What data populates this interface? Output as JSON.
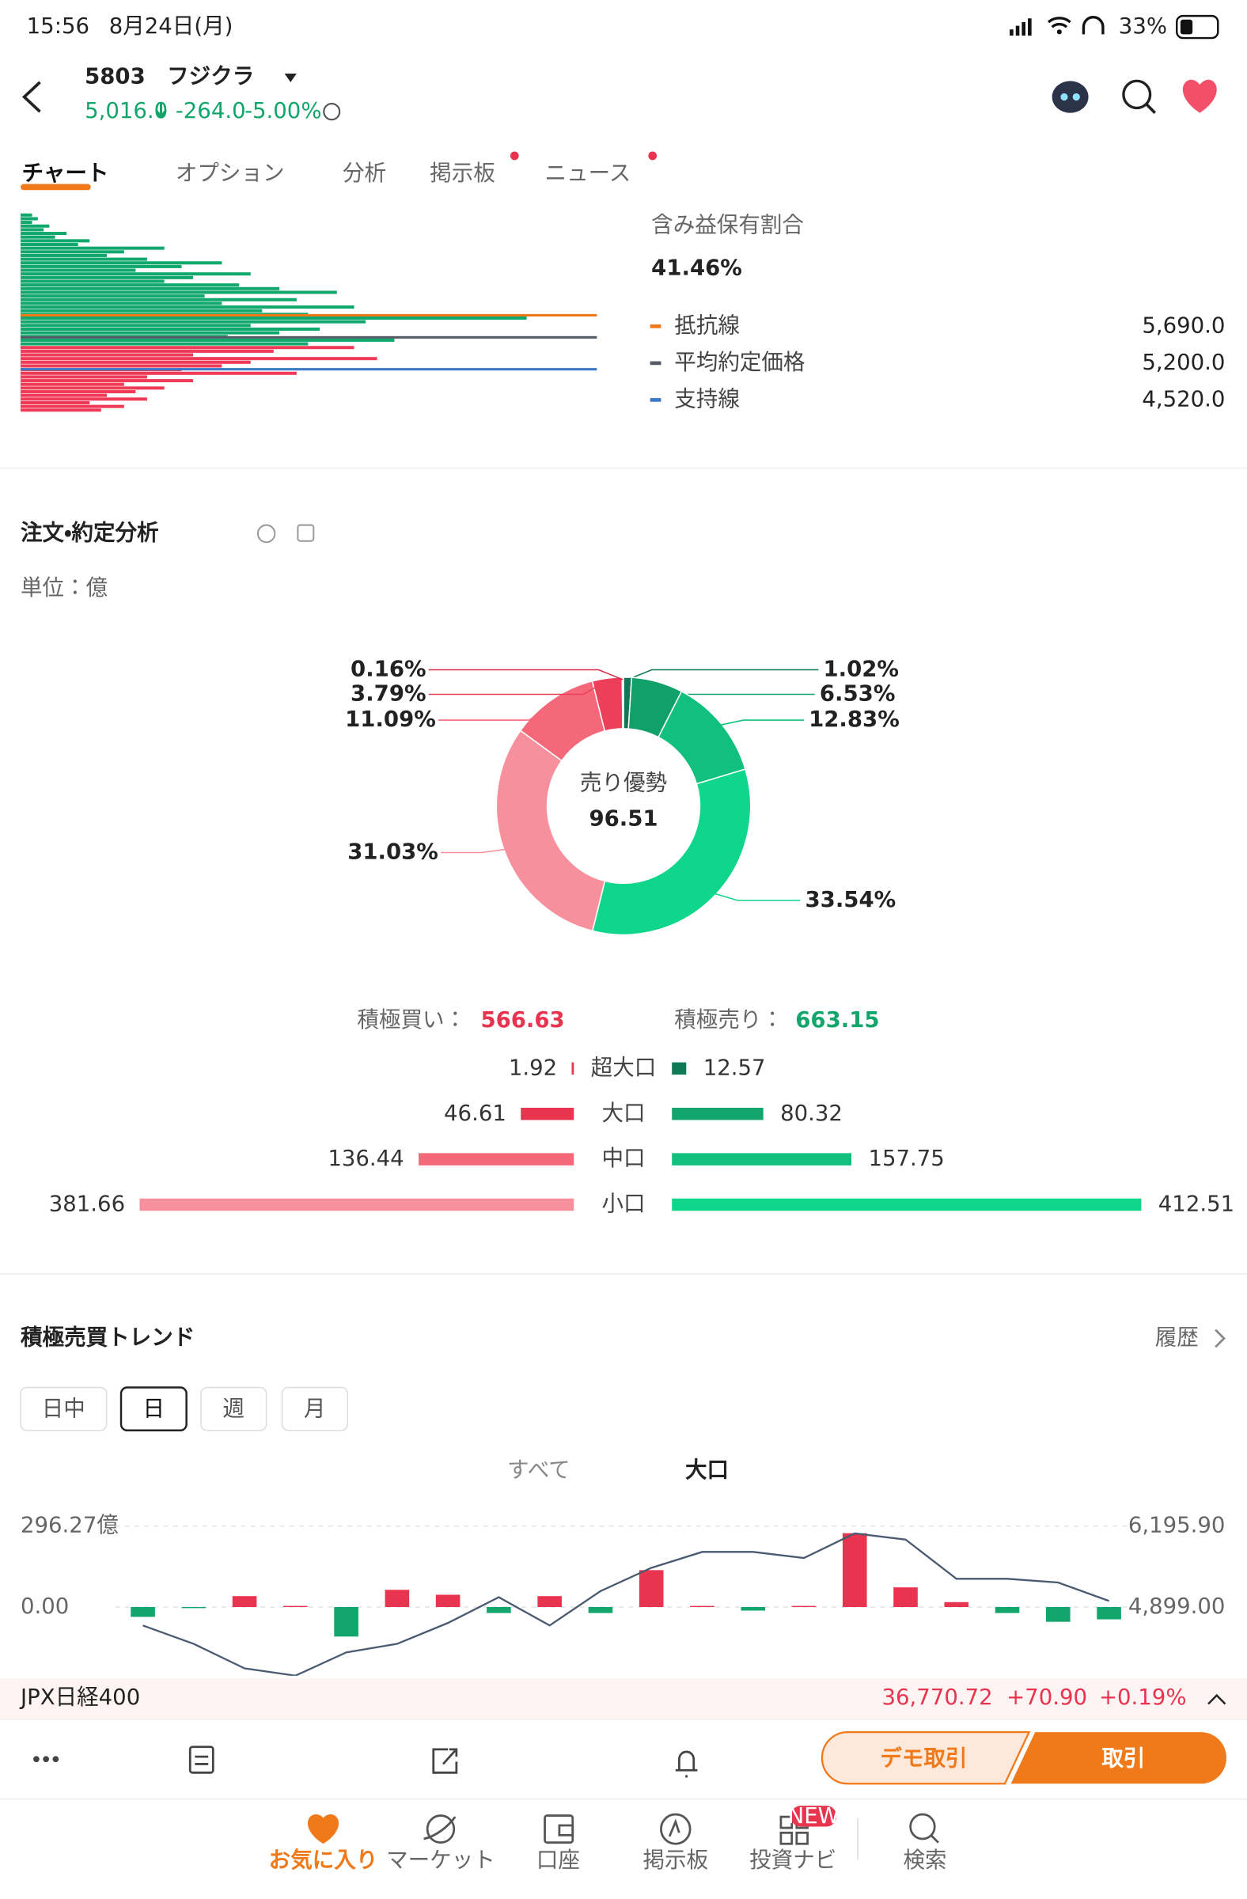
{
  "status_bar": {
    "time": "15:56",
    "date": "8月24日(月)",
    "battery": "33%"
  },
  "header": {
    "code": "5803",
    "name": "フジクラ",
    "price": "5,016.0",
    "change": "-264.0",
    "change_pct": "-5.00%"
  },
  "tabs": [
    "チャート",
    "オプション",
    "分析",
    "掲示板",
    "ニュース"
  ],
  "profile": {
    "title": "含み益保有割合",
    "value": "41.46%",
    "lines": [
      {
        "name": "抵抗線",
        "value": "5,690.0",
        "color": "#f07a1a"
      },
      {
        "name": "平均約定価格",
        "value": "5,200.0",
        "color": "#555b66"
      },
      {
        "name": "支持線",
        "value": "4,520.0",
        "color": "#3a78c9"
      }
    ]
  },
  "order_analysis": {
    "title": "注文・約定分析",
    "unit": "単位：億"
  },
  "trend": {
    "title": "積極売買トレンド",
    "history": "履歴",
    "periods": [
      "日中",
      "日",
      "週",
      "月"
    ],
    "subtabs": [
      "すべて",
      "大口"
    ]
  },
  "ticker": {
    "name": "JPX日経400",
    "price": "36,770.72",
    "change": "+70.90",
    "change_pct": "+0.19%"
  },
  "actions": {
    "demo": "デモ取引",
    "trade": "取引"
  },
  "nav": {
    "items": [
      "お気に入り",
      "マーケット",
      "口座",
      "掲示板",
      "投資ナビ",
      "検索"
    ],
    "badge": "NEW"
  },
  "chart_data": [
    {
      "type": "pie",
      "center_label": "売り優勢",
      "center_value": 96.51,
      "values": [
        1.02,
        6.53,
        12.83,
        33.54,
        31.03,
        11.09,
        3.79,
        0.16
      ],
      "value_labels": [
        "1.02%",
        "6.53%",
        "12.83%",
        "33.54%",
        "31.03%",
        "11.09%",
        "3.79%",
        "0.16%"
      ],
      "colors": [
        "#0e7a55",
        "#12a06a",
        "#10c07c",
        "#0fd68a",
        "#f7909c",
        "#f4687a",
        "#ee3f5a",
        "#d82c45"
      ]
    },
    {
      "type": "butterfly",
      "categories": [
        "超大口",
        "大口",
        "中口",
        "小口"
      ],
      "xlim": [
        0,
        415
      ],
      "series": [
        {
          "name": "積極買い：",
          "total": 566.63,
          "color": "#e8344e",
          "colors": [
            "#e8344e",
            "#e8344e",
            "#f4687a",
            "#f7909c"
          ],
          "values": [
            1.92,
            46.61,
            136.44,
            381.66
          ]
        },
        {
          "name": "積極売り：",
          "total": 663.15,
          "color": "#12a66c",
          "colors": [
            "#0e7a55",
            "#12a66c",
            "#10c07c",
            "#0fd68a"
          ],
          "values": [
            12.57,
            80.32,
            157.75,
            412.51
          ]
        }
      ]
    },
    {
      "type": "combo",
      "grid": true,
      "ylim": [
        -251.4,
        296.27
      ],
      "yticks": [
        {
          "value": 296.27,
          "label": "296.27億"
        },
        {
          "value": 0,
          "label": "0.00"
        }
      ],
      "y2lim": [
        3798.6,
        6195.9
      ],
      "y2ticks": [
        {
          "value": 6195.9,
          "label": "6,195.90"
        },
        {
          "value": 4899,
          "label": "4,899.00"
        }
      ],
      "series": [
        {
          "type": "bar",
          "up_color": "#e8344e",
          "down_color": "#12a66c",
          "values": [
            -36,
            -4,
            40,
            4,
            -108,
            63,
            45,
            -22,
            40,
            -22,
            135,
            4,
            -13,
            4,
            270,
            72,
            18,
            -22,
            -54,
            -45
          ]
        },
        {
          "type": "line",
          "axis": "y2",
          "color": "#4a5a70",
          "values": [
            4604,
            4309,
            3917,
            3800,
            4172,
            4309,
            4644,
            5056,
            4604,
            5154,
            5527,
            5782,
            5782,
            5684,
            6078,
            5980,
            5351,
            5351,
            5292,
            4997
          ]
        }
      ]
    },
    {
      "type": "profile",
      "xlim": [
        0,
        100
      ],
      "series": [
        {
          "color": "#10a86c",
          "values": [
            2,
            3,
            2,
            5,
            4,
            8,
            6,
            12,
            10,
            25,
            18,
            15,
            22,
            35,
            28,
            20,
            40,
            30,
            25,
            38,
            45,
            55,
            32,
            48,
            35,
            58,
            42,
            50,
            88,
            60,
            40,
            52,
            45,
            36,
            65,
            50
          ]
        },
        {
          "color": "#ef3b57",
          "values": [
            58,
            44,
            30,
            62,
            40,
            35,
            28,
            48,
            22,
            30,
            18,
            25,
            20,
            15,
            22,
            12,
            18,
            14
          ]
        }
      ]
    }
  ]
}
